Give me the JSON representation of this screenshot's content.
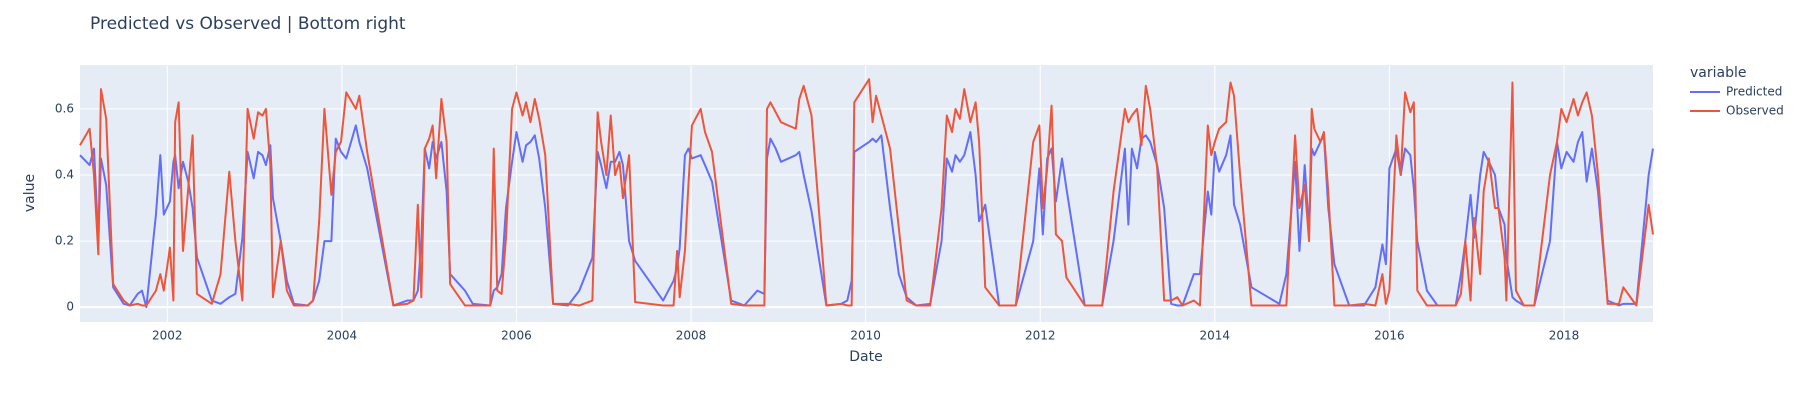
{
  "chart_data": {
    "type": "line",
    "title": "Predicted vs Observed | Bottom right",
    "x_label": "Date",
    "y_label": "value",
    "legend_title": "variable",
    "legend": "right",
    "grid": true,
    "xlim": [
      2001.0,
      2019.02
    ],
    "xticks": [
      2002,
      2004,
      2006,
      2008,
      2010,
      2012,
      2014,
      2016,
      2018
    ],
    "ylim": [
      -0.045,
      0.733
    ],
    "yticks": [
      0,
      0.2,
      0.4,
      0.6
    ],
    "x": [
      2001.0,
      2001.11,
      2001.16,
      2001.21,
      2001.24,
      2001.3,
      2001.38,
      2001.5,
      2001.57,
      2001.66,
      2001.71,
      2001.76,
      2001.87,
      2001.92,
      2001.96,
      2002.03,
      2002.07,
      2002.09,
      2002.13,
      2002.18,
      2002.24,
      2002.29,
      2002.34,
      2002.51,
      2002.61,
      2002.71,
      2002.78,
      2002.86,
      2002.92,
      2002.99,
      2003.04,
      2003.09,
      2003.13,
      2003.18,
      2003.21,
      2003.3,
      2003.37,
      2003.45,
      2003.61,
      2003.67,
      2003.74,
      2003.8,
      2003.88,
      2003.93,
      2003.99,
      2004.05,
      2004.16,
      2004.2,
      2004.29,
      2004.59,
      2004.75,
      2004.82,
      2004.87,
      2004.91,
      2004.95,
      2005.0,
      2005.04,
      2005.08,
      2005.14,
      2005.2,
      2005.24,
      2005.41,
      2005.5,
      2005.7,
      2005.74,
      2005.78,
      2005.83,
      2005.88,
      2005.95,
      2006.0,
      2006.07,
      2006.11,
      2006.16,
      2006.21,
      2006.26,
      2006.33,
      2006.42,
      2006.59,
      2006.72,
      2006.87,
      2006.93,
      2006.97,
      2007.03,
      2007.08,
      2007.13,
      2007.18,
      2007.22,
      2007.29,
      2007.36,
      2007.68,
      2007.8,
      2007.84,
      2007.87,
      2007.93,
      2007.97,
      2008.01,
      2008.11,
      2008.16,
      2008.24,
      2008.46,
      2008.61,
      2008.76,
      2008.84,
      2008.87,
      2008.91,
      2008.97,
      2009.03,
      2009.2,
      2009.24,
      2009.29,
      2009.38,
      2009.55,
      2009.72,
      2009.79,
      2009.84,
      2009.87,
      2010.04,
      2010.08,
      2010.12,
      2010.18,
      2010.28,
      2010.38,
      2010.47,
      2010.58,
      2010.74,
      2010.87,
      2010.93,
      2010.99,
      2011.03,
      2011.08,
      2011.13,
      2011.2,
      2011.26,
      2011.3,
      2011.37,
      2011.53,
      2011.72,
      2011.92,
      2011.99,
      2012.03,
      2012.08,
      2012.13,
      2012.18,
      2012.25,
      2012.3,
      2012.51,
      2012.71,
      2012.84,
      2012.97,
      2013.01,
      2013.05,
      2013.11,
      2013.16,
      2013.21,
      2013.26,
      2013.34,
      2013.42,
      2013.5,
      2013.57,
      2013.63,
      2013.76,
      2013.83,
      2013.92,
      2013.96,
      2014.0,
      2014.05,
      2014.13,
      2014.18,
      2014.22,
      2014.29,
      2014.42,
      2014.74,
      2014.82,
      2014.92,
      2014.97,
      2015.03,
      2015.08,
      2015.11,
      2015.14,
      2015.21,
      2015.25,
      2015.3,
      2015.37,
      2015.54,
      2015.71,
      2015.84,
      2015.92,
      2015.96,
      2016.0,
      2016.08,
      2016.13,
      2016.18,
      2016.24,
      2016.28,
      2016.32,
      2016.43,
      2016.55,
      2016.76,
      2016.82,
      2016.87,
      2016.93,
      2016.97,
      2017.04,
      2017.08,
      2017.14,
      2017.21,
      2017.25,
      2017.32,
      2017.34,
      2017.41,
      2017.45,
      2017.54,
      2017.66,
      2017.84,
      2017.92,
      2017.97,
      2018.03,
      2018.11,
      2018.16,
      2018.21,
      2018.26,
      2018.32,
      2018.39,
      2018.5,
      2018.63,
      2018.68,
      2018.83,
      2018.97,
      2019.02
    ],
    "series": [
      {
        "name": "Predicted",
        "color": "#636efa",
        "values": [
          0.46,
          0.43,
          0.48,
          0.2,
          0.45,
          0.37,
          0.06,
          0.01,
          0.005,
          0.04,
          0.05,
          0.0,
          0.28,
          0.46,
          0.28,
          0.32,
          0.44,
          0.46,
          0.36,
          0.44,
          0.38,
          0.3,
          0.15,
          0.02,
          0.01,
          0.03,
          0.04,
          0.21,
          0.47,
          0.39,
          0.47,
          0.46,
          0.43,
          0.49,
          0.33,
          0.2,
          0.08,
          0.01,
          0.005,
          0.02,
          0.08,
          0.2,
          0.2,
          0.51,
          0.47,
          0.45,
          0.55,
          0.5,
          0.42,
          0.005,
          0.02,
          0.02,
          0.05,
          0.2,
          0.48,
          0.42,
          0.5,
          0.45,
          0.5,
          0.35,
          0.1,
          0.05,
          0.01,
          0.005,
          0.05,
          0.06,
          0.1,
          0.3,
          0.44,
          0.53,
          0.44,
          0.49,
          0.5,
          0.52,
          0.45,
          0.3,
          0.01,
          0.005,
          0.05,
          0.15,
          0.47,
          0.43,
          0.36,
          0.44,
          0.44,
          0.47,
          0.43,
          0.2,
          0.14,
          0.02,
          0.08,
          0.12,
          0.18,
          0.46,
          0.48,
          0.45,
          0.46,
          0.43,
          0.38,
          0.02,
          0.005,
          0.05,
          0.04,
          0.45,
          0.51,
          0.48,
          0.44,
          0.46,
          0.47,
          0.4,
          0.29,
          0.005,
          0.01,
          0.02,
          0.08,
          0.47,
          0.5,
          0.51,
          0.5,
          0.52,
          0.3,
          0.1,
          0.03,
          0.005,
          0.01,
          0.2,
          0.45,
          0.41,
          0.46,
          0.44,
          0.46,
          0.53,
          0.4,
          0.26,
          0.31,
          0.005,
          0.005,
          0.2,
          0.42,
          0.22,
          0.45,
          0.48,
          0.32,
          0.45,
          0.36,
          0.005,
          0.005,
          0.2,
          0.48,
          0.25,
          0.48,
          0.42,
          0.51,
          0.52,
          0.5,
          0.43,
          0.3,
          0.01,
          0.005,
          0.005,
          0.1,
          0.1,
          0.35,
          0.28,
          0.47,
          0.41,
          0.46,
          0.52,
          0.31,
          0.25,
          0.06,
          0.01,
          0.1,
          0.44,
          0.17,
          0.43,
          0.23,
          0.48,
          0.46,
          0.5,
          0.52,
          0.3,
          0.13,
          0.005,
          0.005,
          0.06,
          0.19,
          0.13,
          0.42,
          0.48,
          0.4,
          0.48,
          0.46,
          0.36,
          0.2,
          0.05,
          0.005,
          0.005,
          0.1,
          0.2,
          0.34,
          0.21,
          0.4,
          0.47,
          0.44,
          0.4,
          0.3,
          0.25,
          0.15,
          0.03,
          0.02,
          0.005,
          0.005,
          0.2,
          0.5,
          0.42,
          0.47,
          0.44,
          0.5,
          0.53,
          0.38,
          0.48,
          0.35,
          0.02,
          0.005,
          0.01,
          0.01,
          0.4,
          0.48
        ]
      },
      {
        "name": "Observed",
        "color": "#ef553b",
        "values": [
          0.49,
          0.54,
          0.4,
          0.16,
          0.66,
          0.57,
          0.07,
          0.02,
          0.005,
          0.01,
          0.005,
          0.005,
          0.05,
          0.1,
          0.05,
          0.18,
          0.02,
          0.56,
          0.62,
          0.17,
          0.36,
          0.52,
          0.04,
          0.01,
          0.1,
          0.41,
          0.2,
          0.02,
          0.6,
          0.51,
          0.59,
          0.58,
          0.6,
          0.43,
          0.03,
          0.2,
          0.05,
          0.005,
          0.005,
          0.02,
          0.26,
          0.6,
          0.34,
          0.47,
          0.5,
          0.65,
          0.6,
          0.64,
          0.47,
          0.005,
          0.01,
          0.02,
          0.31,
          0.03,
          0.48,
          0.51,
          0.55,
          0.39,
          0.63,
          0.5,
          0.07,
          0.005,
          0.005,
          0.005,
          0.48,
          0.05,
          0.04,
          0.21,
          0.6,
          0.65,
          0.58,
          0.62,
          0.56,
          0.63,
          0.57,
          0.46,
          0.01,
          0.01,
          0.005,
          0.02,
          0.59,
          0.5,
          0.4,
          0.58,
          0.4,
          0.44,
          0.33,
          0.46,
          0.015,
          0.005,
          0.005,
          0.17,
          0.03,
          0.17,
          0.37,
          0.55,
          0.6,
          0.53,
          0.47,
          0.01,
          0.005,
          0.005,
          0.005,
          0.6,
          0.62,
          0.59,
          0.56,
          0.54,
          0.63,
          0.67,
          0.58,
          0.005,
          0.01,
          0.005,
          0.005,
          0.62,
          0.69,
          0.56,
          0.64,
          0.58,
          0.48,
          0.24,
          0.02,
          0.005,
          0.005,
          0.3,
          0.58,
          0.53,
          0.6,
          0.57,
          0.66,
          0.56,
          0.62,
          0.5,
          0.06,
          0.005,
          0.005,
          0.5,
          0.55,
          0.3,
          0.42,
          0.61,
          0.22,
          0.2,
          0.09,
          0.005,
          0.005,
          0.35,
          0.6,
          0.56,
          0.58,
          0.6,
          0.49,
          0.67,
          0.6,
          0.42,
          0.02,
          0.02,
          0.03,
          0.005,
          0.02,
          0.005,
          0.55,
          0.46,
          0.5,
          0.54,
          0.56,
          0.68,
          0.64,
          0.4,
          0.005,
          0.005,
          0.005,
          0.52,
          0.3,
          0.37,
          0.2,
          0.6,
          0.54,
          0.5,
          0.53,
          0.35,
          0.005,
          0.005,
          0.01,
          0.005,
          0.1,
          0.01,
          0.05,
          0.52,
          0.4,
          0.65,
          0.59,
          0.62,
          0.05,
          0.005,
          0.005,
          0.005,
          0.04,
          0.2,
          0.02,
          0.27,
          0.1,
          0.35,
          0.45,
          0.3,
          0.3,
          0.15,
          0.02,
          0.68,
          0.05,
          0.005,
          0.005,
          0.4,
          0.5,
          0.6,
          0.56,
          0.63,
          0.58,
          0.62,
          0.65,
          0.58,
          0.4,
          0.01,
          0.01,
          0.06,
          0.005,
          0.31,
          0.22
        ]
      }
    ]
  }
}
